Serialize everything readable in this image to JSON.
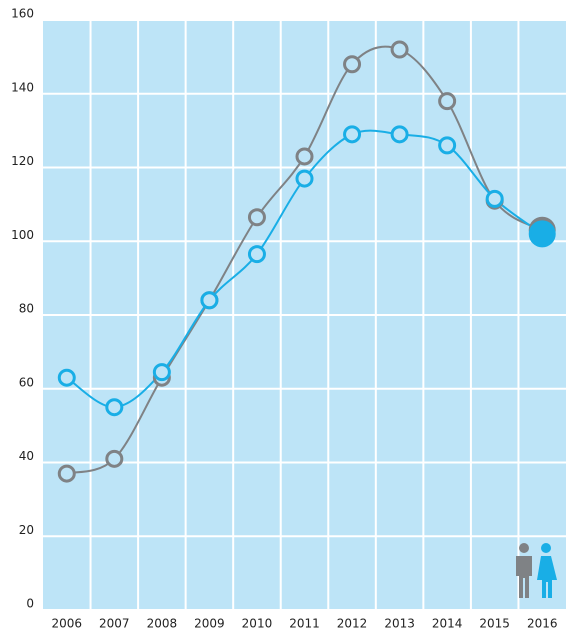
{
  "chart_data": {
    "type": "line",
    "categories": [
      "2006",
      "2007",
      "2008",
      "2009",
      "2010",
      "2011",
      "2012",
      "2013",
      "2014",
      "2015",
      "2016"
    ],
    "series": [
      {
        "color": "#7f8285",
        "values": [
          37,
          41,
          63,
          84,
          106.5,
          123,
          148,
          152,
          138,
          111,
          103
        ]
      },
      {
        "color": "#19aee6",
        "values": [
          63,
          55,
          64.5,
          84,
          96.5,
          117,
          129,
          129,
          126,
          111.5,
          102
        ]
      }
    ],
    "ylim": [
      0,
      160
    ],
    "yticks": [
      0,
      20,
      40,
      60,
      80,
      100,
      120,
      140,
      160
    ],
    "grid": true
  }
}
